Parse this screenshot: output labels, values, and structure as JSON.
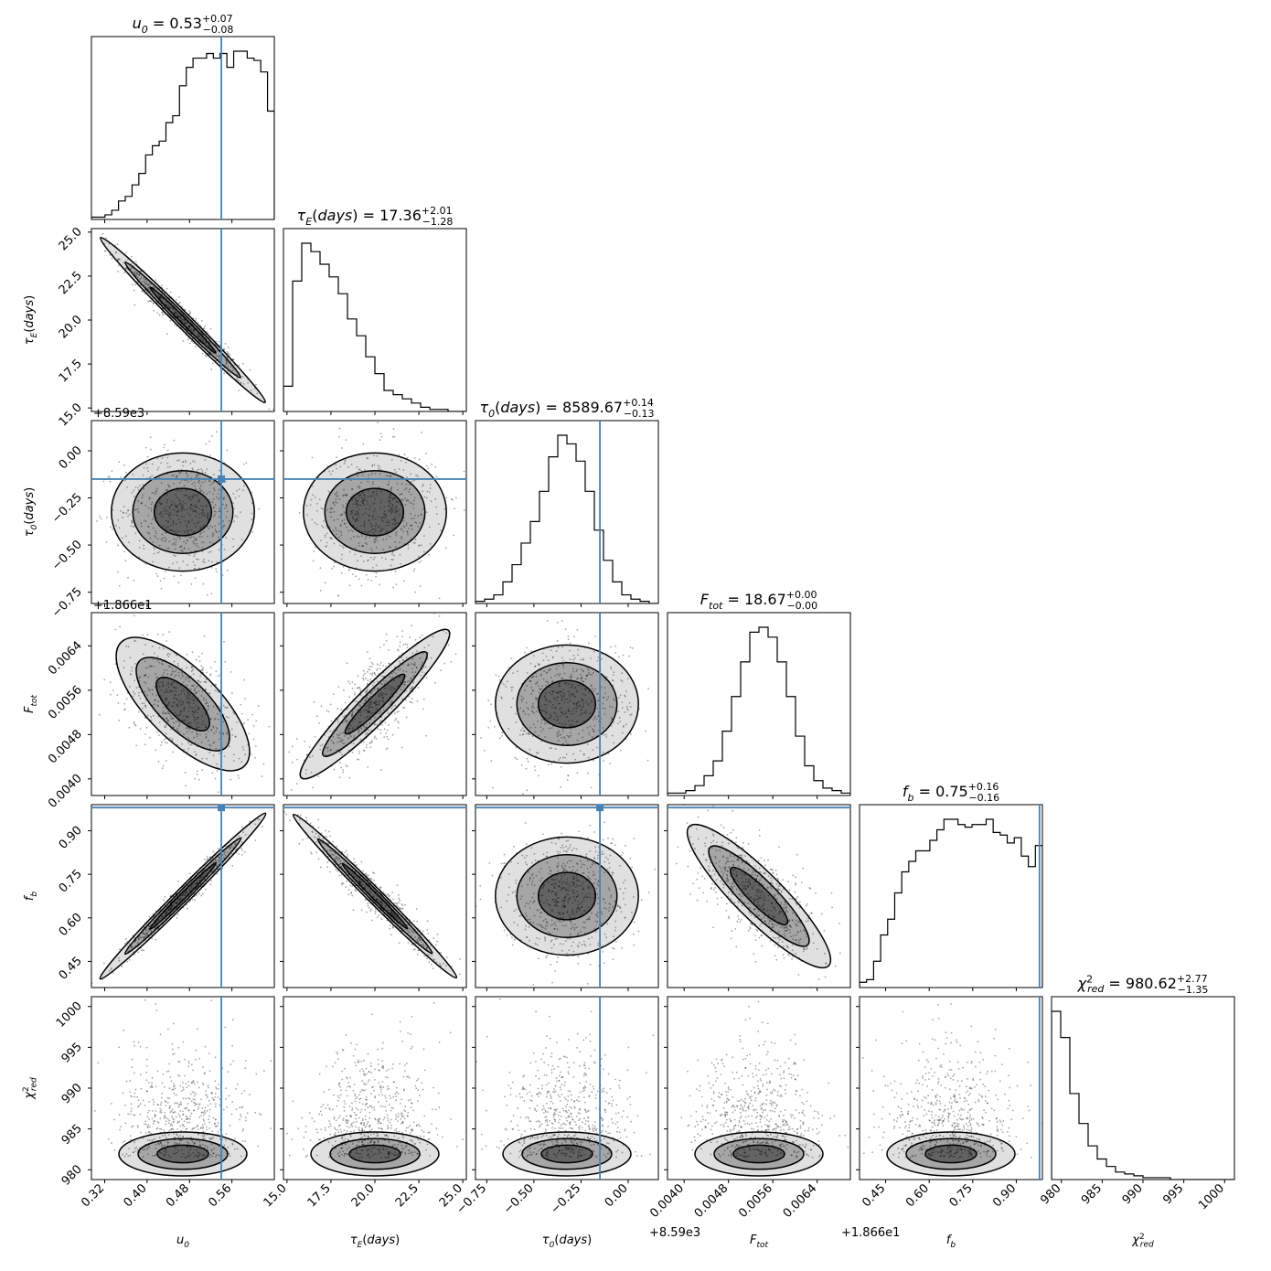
{
  "figure": {
    "title": "",
    "truth_color": "#4682b4",
    "hist_color": "#000000"
  },
  "chart_data": {
    "type": "corner",
    "parameters": [
      {
        "key": "u0",
        "title": {
          "sym": "u",
          "sub": "0",
          "value": "0.53",
          "plus": "+0.07",
          "minus": "−0.08"
        },
        "xlabel": {
          "sym": "u",
          "sub": "0"
        },
        "ylabel": {
          "sym": "",
          "sub": ""
        },
        "range": [
          0.295,
          0.64
        ],
        "ticks": [
          0.32,
          0.4,
          0.48,
          0.56
        ],
        "tick_labels": [
          "0.32",
          "0.40",
          "0.48",
          "0.56"
        ],
        "offset": "",
        "truth": 0.54,
        "hist": [
          0.01,
          0.01,
          0.02,
          0.04,
          0.08,
          0.1,
          0.15,
          0.2,
          0.28,
          0.32,
          0.34,
          0.42,
          0.45,
          0.58,
          0.66,
          0.7,
          0.7,
          0.72,
          0.7,
          0.72,
          0.66,
          0.73,
          0.73,
          0.7,
          0.69,
          0.64,
          0.47
        ]
      },
      {
        "key": "tauE",
        "title": {
          "sym": "τ",
          "sub": "E",
          "paren": "(days)",
          "value": "17.36",
          "plus": "+2.01",
          "minus": "−1.28"
        },
        "xlabel": {
          "sym": "τ",
          "sub": "E",
          "paren": "(days)"
        },
        "ylabel": {
          "sym": "τ",
          "sub": "E",
          "paren": "(days)"
        },
        "range": [
          14.8,
          25.2
        ],
        "ticks": [
          15.0,
          17.5,
          20.0,
          22.5,
          25.0
        ],
        "tick_labels": [
          "15.0",
          "17.5",
          "20.0",
          "22.5",
          "25.0"
        ],
        "offset": "",
        "truth": null,
        "hist": [
          0.12,
          0.62,
          0.8,
          0.76,
          0.7,
          0.64,
          0.56,
          0.44,
          0.36,
          0.26,
          0.18,
          0.1,
          0.08,
          0.06,
          0.04,
          0.02,
          0.01,
          0.01,
          0.0,
          0.0
        ]
      },
      {
        "key": "tau0",
        "title": {
          "sym": "τ",
          "sub": "0",
          "paren": "(days)",
          "value": "8589.67",
          "plus": "+0.14",
          "minus": "−0.13"
        },
        "xlabel": {
          "sym": "τ",
          "sub": "0",
          "paren": "(days)"
        },
        "ylabel": {
          "sym": "τ",
          "sub": "0",
          "paren": "(days)"
        },
        "range": [
          -0.81,
          0.16
        ],
        "ticks": [
          -0.75,
          -0.5,
          -0.25,
          0.0
        ],
        "tick_labels": [
          "−0.75",
          "−0.50",
          "−0.25",
          "0.00"
        ],
        "offset": "+8.59e3",
        "truth": -0.15,
        "hist": [
          0.01,
          0.02,
          0.04,
          0.1,
          0.18,
          0.28,
          0.38,
          0.52,
          0.68,
          0.78,
          0.74,
          0.66,
          0.52,
          0.34,
          0.2,
          0.1,
          0.04,
          0.02,
          0.01,
          0.0
        ]
      },
      {
        "key": "Ftot",
        "title": {
          "sym": "F",
          "sub": "tot",
          "value": "18.67",
          "plus": "+0.00",
          "minus": "−0.00"
        },
        "xlabel": {
          "sym": "F",
          "sub": "tot"
        },
        "ylabel": {
          "sym": "F",
          "sub": "tot"
        },
        "range": [
          0.0037,
          0.007
        ],
        "ticks": [
          0.004,
          0.0048,
          0.0056,
          0.0064
        ],
        "tick_labels": [
          "0.0040",
          "0.0048",
          "0.0056",
          "0.0064"
        ],
        "offset": "+1.866e1",
        "truth": null,
        "hist": [
          0.01,
          0.01,
          0.02,
          0.04,
          0.08,
          0.14,
          0.26,
          0.4,
          0.54,
          0.66,
          0.68,
          0.64,
          0.54,
          0.4,
          0.24,
          0.12,
          0.06,
          0.03,
          0.02,
          0.01
        ]
      },
      {
        "key": "fb",
        "title": {
          "sym": "f",
          "sub": "b",
          "value": "0.75",
          "plus": "+0.16",
          "minus": "−0.16"
        },
        "xlabel": {
          "sym": "f",
          "sub": "b"
        },
        "ylabel": {
          "sym": "f",
          "sub": "b"
        },
        "range": [
          0.36,
          0.99
        ],
        "ticks": [
          0.45,
          0.6,
          0.75,
          0.9
        ],
        "tick_labels": [
          "0.45",
          "0.60",
          "0.75",
          "0.90"
        ],
        "offset": "",
        "truth": 0.98,
        "hist": [
          0.02,
          0.03,
          0.1,
          0.2,
          0.26,
          0.36,
          0.44,
          0.48,
          0.52,
          0.52,
          0.56,
          0.6,
          0.64,
          0.64,
          0.62,
          0.61,
          0.62,
          0.62,
          0.64,
          0.59,
          0.58,
          0.55,
          0.57,
          0.5,
          0.46,
          0.54
        ]
      },
      {
        "key": "chi2",
        "title": {
          "sym": "χ",
          "sup": "2",
          "sub": "red",
          "value": "980.62",
          "plus": "+2.77",
          "minus": "−1.35"
        },
        "xlabel": {
          "sym": "χ",
          "sup": "2",
          "sub": "red"
        },
        "ylabel": {
          "sym": "χ",
          "sup": "2",
          "sub": "red"
        },
        "range": [
          978.8,
          1001.2
        ],
        "ticks": [
          980,
          985,
          990,
          995,
          1000
        ],
        "tick_labels": [
          "980",
          "985",
          "990",
          "995",
          "1000"
        ],
        "offset": "",
        "truth": null,
        "hist": [
          0.9,
          0.76,
          0.46,
          0.3,
          0.18,
          0.11,
          0.07,
          0.04,
          0.03,
          0.02,
          0.01,
          0.01,
          0.01,
          0.0,
          0.0,
          0.0,
          0.0,
          0.0,
          0.0,
          0.0
        ]
      }
    ],
    "pair_correlations": {
      "1_0": -0.97,
      "2_0": 0.0,
      "2_1": 0.05,
      "3_0": -0.45,
      "3_1": 0.75,
      "3_2": 0.1,
      "4_0": 0.98,
      "4_1": -0.95,
      "4_2": 0.05,
      "4_3": -0.65,
      "5_0": 0.0,
      "5_1": 0.0,
      "5_2": 0.0,
      "5_3": 0.0,
      "5_4": 0.0
    }
  }
}
